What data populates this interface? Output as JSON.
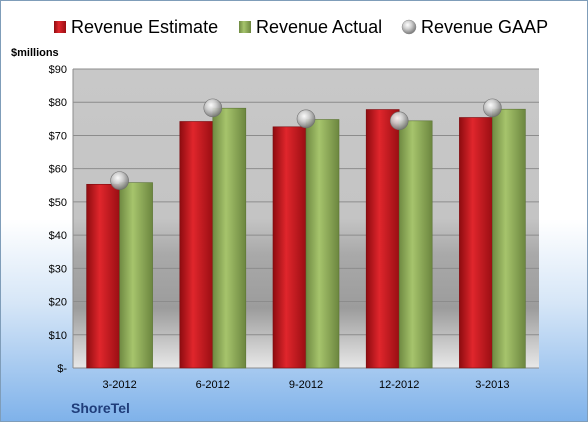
{
  "chart_data": {
    "type": "bar",
    "ylabel": "$millions",
    "company": "ShoreTel",
    "categories": [
      "3-2012",
      "6-2012",
      "9-2012",
      "12-2012",
      "3-2013"
    ],
    "series": [
      {
        "name": "Revenue Estimate",
        "kind": "bar",
        "color": "#c0151b",
        "values": [
          55.3,
          74.2,
          72.6,
          77.8,
          75.4
        ]
      },
      {
        "name": "Revenue Actual",
        "kind": "bar",
        "color": "#8fad5a",
        "values": [
          55.8,
          78.2,
          74.8,
          74.4,
          77.9
        ]
      },
      {
        "name": "Revenue GAAP",
        "kind": "marker",
        "color": "#b8b8b8",
        "values": [
          56.4,
          78.3,
          75.0,
          74.4,
          78.3
        ]
      }
    ],
    "ylim": [
      0,
      90
    ],
    "yticks": [
      0,
      10,
      20,
      30,
      40,
      50,
      60,
      70,
      80,
      90
    ],
    "ytick_labels": [
      "$-",
      "$10",
      "$20",
      "$30",
      "$40",
      "$50",
      "$60",
      "$70",
      "$80",
      "$90"
    ],
    "legend_position": "top",
    "grid": true
  }
}
